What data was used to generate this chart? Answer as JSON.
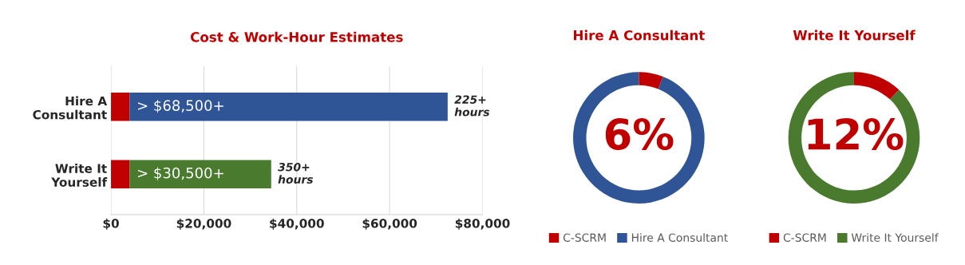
{
  "chart_data": [
    {
      "type": "bar",
      "title": "Cost & Work-Hour Estimates",
      "orientation": "horizontal",
      "stacked": true,
      "grid": "x",
      "legend": false,
      "categories": [
        "Hire A\nConsultant",
        "Write It\nYourself"
      ],
      "series": [
        {
          "color": "#c00000",
          "values": [
            4000,
            4000
          ]
        },
        {
          "colors": [
            "#2f5597",
            "#4a7a2e"
          ],
          "values": [
            68500,
            30500
          ],
          "value_labels": [
            "> $68,500+",
            "> $30,500+"
          ]
        }
      ],
      "xlim": [
        0,
        80000
      ],
      "xticks": [
        {
          "value": 0,
          "label": "$0"
        },
        {
          "value": 20000,
          "label": "$20,000"
        },
        {
          "value": 40000,
          "label": "$40,000"
        },
        {
          "value": 60000,
          "label": "$60,000"
        },
        {
          "value": 80000,
          "label": "$80,000"
        }
      ],
      "annotations": [
        {
          "text": "225+\nhours",
          "x": 72500,
          "y": "Hire A\nConsultant"
        },
        {
          "text": "350+\nhours",
          "x": 34500,
          "y": "Write It\nYourself"
        }
      ]
    },
    {
      "type": "donut",
      "title": "Hire A Consultant",
      "legend": "bottom",
      "categories": [
        "C-SCRM",
        "Hire A Consultant"
      ],
      "values": [
        6,
        94
      ],
      "colors": [
        "#c00000",
        "#2f5597"
      ],
      "annotations": [
        "6%"
      ]
    },
    {
      "type": "donut",
      "title": "Write It Yourself",
      "legend": "bottom",
      "categories": [
        "C-SCRM",
        "Write It Yourself"
      ],
      "values": [
        12,
        88
      ],
      "colors": [
        "#c00000",
        "#4a7a2e"
      ],
      "annotations": [
        "12%"
      ]
    }
  ]
}
